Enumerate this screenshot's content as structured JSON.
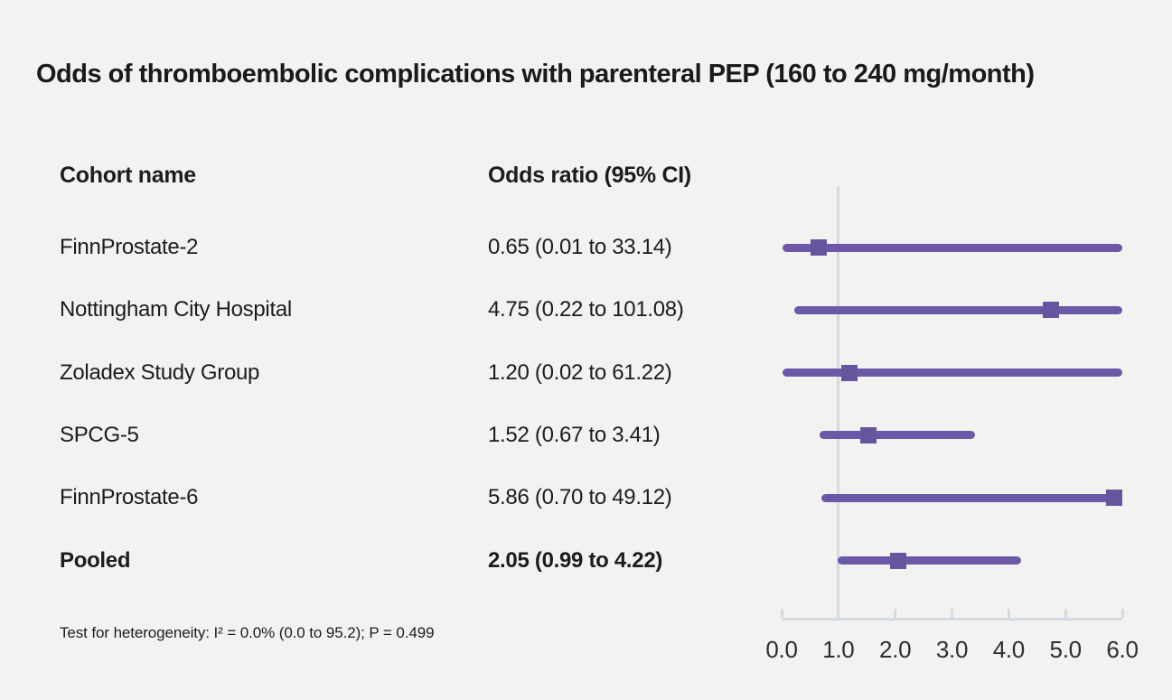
{
  "title": "Odds of thromboembolic complications with parenteral PEP (160 to 240 mg/month)",
  "columns": {
    "cohort": "Cohort name",
    "odds_ratio": "Odds ratio (95% CI)"
  },
  "footnote": "Test for heterogeneity: I² = 0.0% (0.0 to 95.2); P = 0.499",
  "colors": {
    "background": "#f2f2f1",
    "ci_line": "#6b59a8",
    "marker": "#67549f",
    "axis": "#d5dae2",
    "text": "#1c1c1c"
  },
  "chart_data": {
    "type": "scatter",
    "subtype": "forest-plot",
    "title": "Odds of thromboembolic complications with parenteral PEP (160 to 240 mg/month)",
    "xlabel": "",
    "ylabel": "",
    "xlim": [
      0.0,
      6.0
    ],
    "xtick_values": [
      0,
      1,
      2,
      3,
      4,
      5,
      6
    ],
    "xtick_labels": [
      "0.0",
      "1.0",
      "2.0",
      "3.0",
      "4.0",
      "5.0",
      "6.0"
    ],
    "reference_line_x": 1.0,
    "grid": false,
    "legend": false,
    "rows": [
      {
        "cohort": "FinnProstate-2",
        "or_label": "0.65 (0.01 to 33.14)",
        "or": 0.65,
        "ci_low": 0.01,
        "ci_high": 33.14,
        "bold": false
      },
      {
        "cohort": "Nottingham City Hospital",
        "or_label": "4.75 (0.22 to 101.08)",
        "or": 4.75,
        "ci_low": 0.22,
        "ci_high": 101.08,
        "bold": false
      },
      {
        "cohort": "Zoladex Study Group",
        "or_label": "1.20 (0.02 to 61.22)",
        "or": 1.2,
        "ci_low": 0.02,
        "ci_high": 61.22,
        "bold": false
      },
      {
        "cohort": "SPCG-5",
        "or_label": "1.52 (0.67 to 3.41)",
        "or": 1.52,
        "ci_low": 0.67,
        "ci_high": 3.41,
        "bold": false
      },
      {
        "cohort": "FinnProstate-6",
        "or_label": "5.86 (0.70 to 49.12)",
        "or": 5.86,
        "ci_low": 0.7,
        "ci_high": 49.12,
        "bold": false
      },
      {
        "cohort": "Pooled",
        "or_label": "2.05 (0.99 to 4.22)",
        "or": 2.05,
        "ci_low": 0.99,
        "ci_high": 4.22,
        "bold": true
      }
    ]
  }
}
